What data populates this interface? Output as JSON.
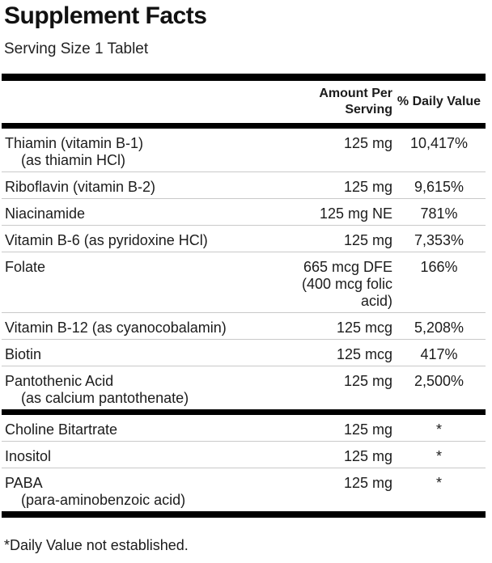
{
  "label": {
    "title": "Supplement Facts",
    "serving_size": "Serving Size 1 Tablet",
    "header": {
      "amount_column": "Amount Per\nServing",
      "daily_value_column": "% Daily Value"
    },
    "rows": [
      {
        "name": "Thiamin (vitamin B-1)",
        "name2": "(as thiamin HCl)",
        "amount": "125 mg",
        "dv": "10,417%"
      },
      {
        "name": "Riboflavin (vitamin B-2)",
        "name2": "",
        "amount": "125 mg",
        "dv": "9,615%"
      },
      {
        "name": "Niacinamide",
        "name2": "",
        "amount": "125 mg NE",
        "dv": "781%"
      },
      {
        "name": "Vitamin B-6 (as pyridoxine HCl)",
        "name2": "",
        "amount": "125 mg",
        "dv": "7,353%"
      },
      {
        "name": "Folate",
        "name2": "",
        "amount": "665 mcg DFE (400 mcg folic acid)",
        "dv": "166%"
      },
      {
        "name": "Vitamin B-12 (as cyanocobalamin)",
        "name2": "",
        "amount": "125 mcg",
        "dv": "5,208%"
      },
      {
        "name": "Biotin",
        "name2": "",
        "amount": "125 mcg",
        "dv": "417%"
      },
      {
        "name": "Pantothenic Acid",
        "name2": "(as calcium pantothenate)",
        "amount": "125 mg",
        "dv": "2,500%"
      },
      {
        "name": "Choline Bitartrate",
        "name2": "",
        "amount": "125 mg",
        "dv": "*"
      },
      {
        "name": "Inositol",
        "name2": "",
        "amount": "125 mg",
        "dv": "*"
      },
      {
        "name": "PABA",
        "name2": "(para-aminobenzoic acid)",
        "amount": "125 mg",
        "dv": "*"
      }
    ],
    "footnote": "*Daily Value not established.",
    "colors": {
      "text": "#1c1c1c",
      "section_bar": "#000000",
      "row_divider": "#c9c9c9",
      "background": "#ffffff"
    }
  }
}
